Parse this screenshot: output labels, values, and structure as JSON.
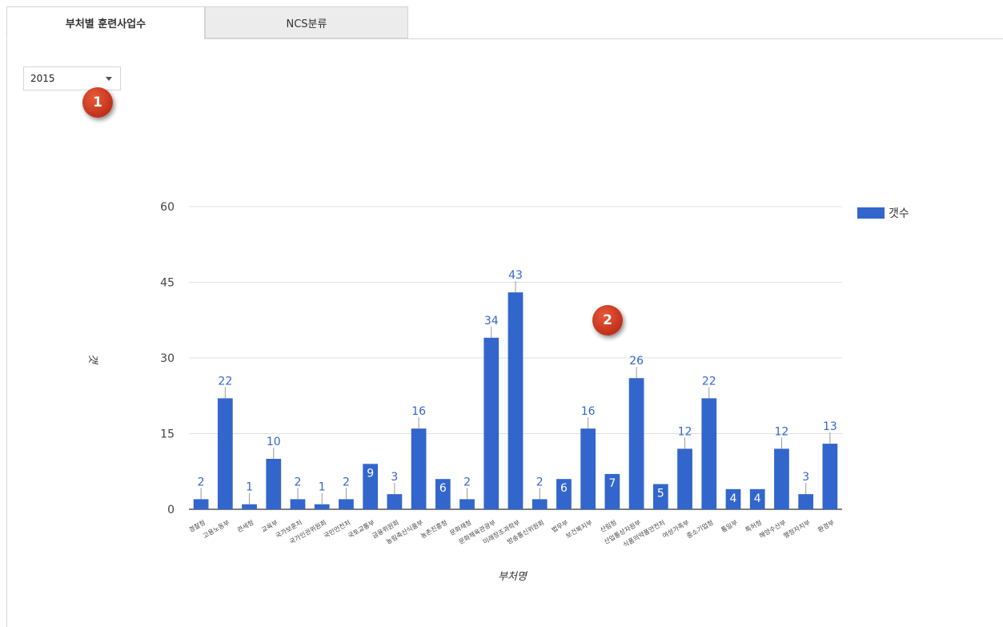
{
  "tabs": [
    {
      "label": "부처별 훈련사업수"
    },
    {
      "label": "NCS분류"
    }
  ],
  "year_select": {
    "value": "2015"
  },
  "annotations": [
    "1",
    "2"
  ],
  "colors": {
    "bar": "#3366cc",
    "label": "#3366cc",
    "grid": "#e0e0e0"
  },
  "chart_data": {
    "type": "bar",
    "xlabel": "부처명",
    "ylabel": "갯",
    "ylim": [
      0,
      60
    ],
    "yticks": [
      0,
      15,
      30,
      45,
      60
    ],
    "legend_position": "right",
    "series": [
      {
        "name": "갯수",
        "values": [
          2,
          22,
          1,
          10,
          2,
          1,
          2,
          9,
          3,
          16,
          6,
          2,
          34,
          43,
          2,
          6,
          16,
          7,
          26,
          5,
          12,
          22,
          4,
          4,
          12,
          3,
          13
        ]
      }
    ],
    "categories": [
      "경찰청",
      "고용노동부",
      "관세청",
      "교육부",
      "국가보훈처",
      "국가인권위원회",
      "국민안전처",
      "국토교통부",
      "금융위원회",
      "농림축산식품부",
      "농촌진흥청",
      "문화재청",
      "문화체육관광부",
      "미래창조과학부",
      "방송통신위원회",
      "법무부",
      "보건복지부",
      "산림청",
      "산업통상자원부",
      "식품의약품안전처",
      "여성가족부",
      "중소기업청",
      "통일부",
      "특허청",
      "해양수산부",
      "행정자치부",
      "환경부"
    ],
    "label_inside": [
      false,
      false,
      false,
      false,
      false,
      false,
      false,
      true,
      false,
      false,
      true,
      false,
      false,
      false,
      false,
      true,
      false,
      true,
      false,
      true,
      false,
      false,
      true,
      true,
      false,
      false,
      false
    ]
  }
}
